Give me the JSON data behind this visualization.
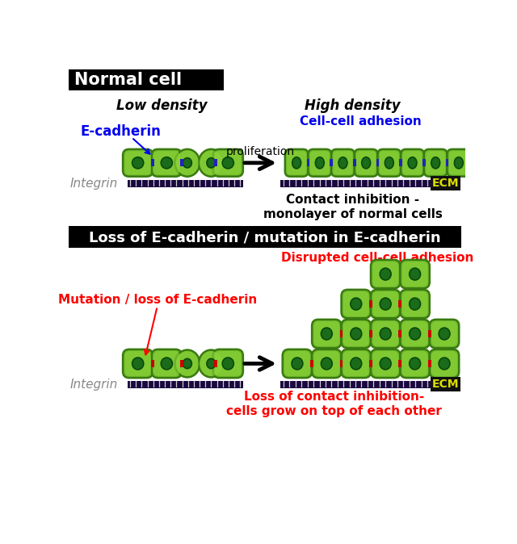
{
  "bg_color": "#ffffff",
  "section1_title": "Normal cell",
  "section1_title_bg": "#000000",
  "section1_title_color": "#ffffff",
  "section2_title": "Loss of E-cadherin / mutation in E-cadherin",
  "section2_title_bg": "#000000",
  "section2_title_color": "#ffffff",
  "low_density_label": "Low density",
  "high_density_label": "High density",
  "ecadherin_label": "E-cadherin",
  "ecadherin_color": "#0000ee",
  "integrin_label": "Integrin",
  "integrin_color": "#888888",
  "ecm_label": "ECM",
  "ecm_color": "#dddd00",
  "ecm_bg_color": "#111111",
  "cell_adhesion_label": "Cell-cell adhesion",
  "cell_adhesion_color": "#0000ee",
  "proliferation_label": "proliferation",
  "contact_inhibition_label": "Contact inhibition -\nmonolayer of normal cells",
  "disrupted_adhesion_label": "Disrupted cell-cell adhesion",
  "disrupted_adhesion_color": "#ff0000",
  "mutation_label": "Mutation / loss of E-cadherin",
  "mutation_color": "#ff0000",
  "loss_inhibition_label": "Loss of contact inhibition-\ncells grow on top of each other",
  "loss_inhibition_color": "#ff0000",
  "cell_green_outer": "#6db82a",
  "cell_green_inner": "#8ed63a",
  "cell_green_edge": "#3a7a10",
  "cell_nucleus_color": "#1a6b1a",
  "cell_nucleus_edge": "#0a4a0a",
  "ecm_bar_color": "#1a0840",
  "junction_color_blue": "#2222bb",
  "junction_color_red": "#cc0000",
  "integrin_spike_color": "#cccccc",
  "white_gap_color": "#dddddd"
}
